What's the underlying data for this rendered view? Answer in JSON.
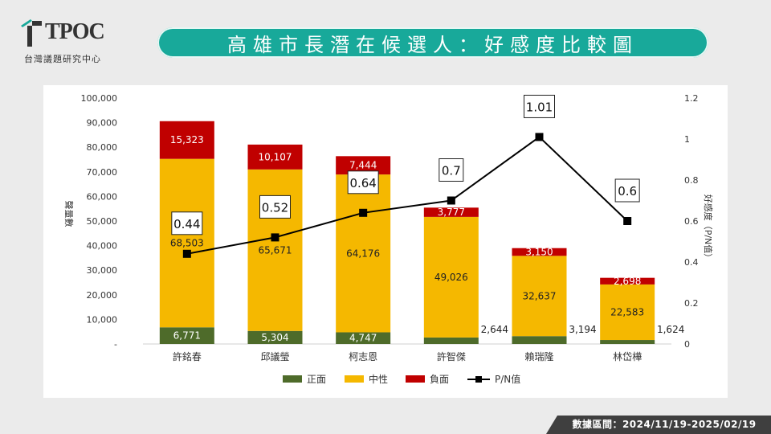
{
  "logo": {
    "brand": "TPOC",
    "subtitle": "台灣議題研究中心"
  },
  "title": "高雄市長潛在候選人：好感度比較圖",
  "footer": {
    "period": "數據區間：2024/11/19-2025/02/19"
  },
  "colors": {
    "positive": "#4e6b2a",
    "neutral": "#f5b800",
    "negative": "#c00000",
    "line": "#000000",
    "title_bar": "#18a99a"
  },
  "chart_data": {
    "type": "bar",
    "stacked": true,
    "categories": [
      "許銘春",
      "邱議瑩",
      "柯志恩",
      "許智傑",
      "賴瑞隆",
      "林岱樺"
    ],
    "series": [
      {
        "name": "正面",
        "values": [
          6771,
          5304,
          4747,
          2644,
          3194,
          1624
        ]
      },
      {
        "name": "中性",
        "values": [
          68503,
          65671,
          64176,
          49026,
          32637,
          22583
        ]
      },
      {
        "name": "負面",
        "values": [
          15323,
          10107,
          7444,
          3777,
          3150,
          2698
        ]
      }
    ],
    "line_series": {
      "name": "P/N值",
      "values": [
        0.44,
        0.52,
        0.64,
        0.7,
        1.01,
        0.6
      ],
      "labels": [
        "0.44",
        "0.52",
        "0.64",
        "0.7",
        "1.01",
        "0.6"
      ]
    },
    "data_labels": {
      "positive": [
        "6,771",
        "5,304",
        "4,747",
        "2,644",
        "3,194",
        "1,624"
      ],
      "neutral": [
        "68,503",
        "65,671",
        "64,176",
        "49,026",
        "32,637",
        "22,583"
      ],
      "negative": [
        "15,323",
        "10,107",
        "7,444",
        "3,777",
        "3,150",
        "2,698"
      ]
    },
    "ylabel": "聲量數",
    "y2label": "好感度（P/N值）",
    "ylim": [
      0,
      100000
    ],
    "y2lim": [
      0,
      1.2
    ],
    "yticks": [
      0,
      10000,
      20000,
      30000,
      40000,
      50000,
      60000,
      70000,
      80000,
      90000,
      100000
    ],
    "ytick_labels": [
      "-",
      "10,000",
      "20,000",
      "30,000",
      "40,000",
      "50,000",
      "60,000",
      "70,000",
      "80,000",
      "90,000",
      "100,000"
    ],
    "y2ticks": [
      0,
      0.2,
      0.4,
      0.6,
      0.8,
      1,
      1.2
    ],
    "y2tick_labels": [
      "0",
      "0.2",
      "0.4",
      "0.6",
      "0.8",
      "1",
      "1.2"
    ],
    "legend": {
      "position": "bottom",
      "items": [
        "正面",
        "中性",
        "負面",
        "P/N值"
      ]
    },
    "grid": false
  }
}
